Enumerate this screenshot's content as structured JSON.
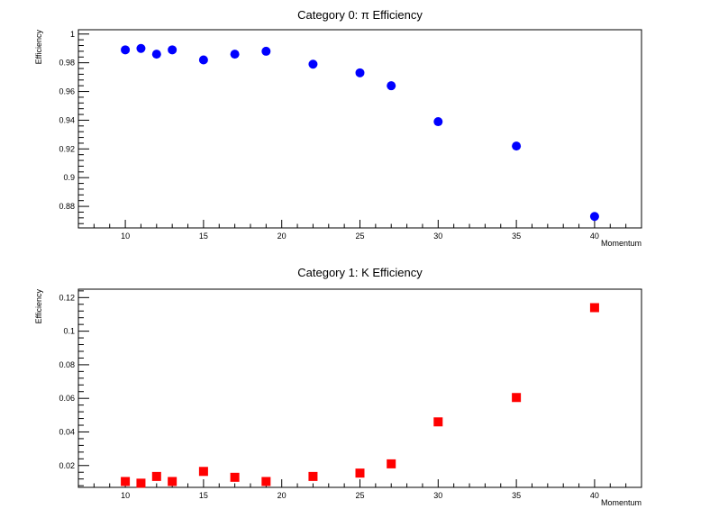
{
  "chart_data": [
    {
      "type": "scatter",
      "title": "Category 0: π Efficiency",
      "xlabel": "Momentum",
      "ylabel": "Efficiency",
      "xlim": [
        7,
        43
      ],
      "ylim": [
        0.865,
        1.003
      ],
      "x_ticks": [
        10,
        15,
        20,
        25,
        30,
        35,
        40
      ],
      "y_ticks": [
        0.88,
        0.9,
        0.92,
        0.94,
        0.96,
        0.98,
        1
      ],
      "y_tick_labels": [
        "0.88",
        "0.9",
        "0.92",
        "0.94",
        "0.96",
        "0.98",
        "1"
      ],
      "grid": false,
      "marker": "circle",
      "color": "#0000ff",
      "series": [
        {
          "x": [
            10,
            11,
            12,
            13,
            15,
            17,
            19,
            22,
            25,
            27,
            30,
            35,
            40
          ],
          "y": [
            0.989,
            0.99,
            0.986,
            0.989,
            0.982,
            0.986,
            0.988,
            0.979,
            0.973,
            0.964,
            0.939,
            0.922,
            0.873
          ]
        }
      ]
    },
    {
      "type": "scatter",
      "title": "Category 1: K Efficiency",
      "xlabel": "Momentum",
      "ylabel": "Efficiency",
      "xlim": [
        7,
        43
      ],
      "ylim": [
        0.007,
        0.125
      ],
      "x_ticks": [
        10,
        15,
        20,
        25,
        30,
        35,
        40
      ],
      "y_ticks": [
        0.02,
        0.04,
        0.06,
        0.08,
        0.1,
        0.12
      ],
      "y_tick_labels": [
        "0.02",
        "0.04",
        "0.06",
        "0.08",
        "0.1",
        "0.12"
      ],
      "grid": false,
      "marker": "square",
      "color": "#ff0000",
      "series": [
        {
          "x": [
            10,
            11,
            12,
            13,
            15,
            17,
            19,
            22,
            25,
            27,
            30,
            35,
            40
          ],
          "y": [
            0.0105,
            0.0095,
            0.0135,
            0.0105,
            0.0165,
            0.013,
            0.0105,
            0.0135,
            0.0155,
            0.021,
            0.046,
            0.0605,
            0.114
          ]
        }
      ]
    }
  ]
}
